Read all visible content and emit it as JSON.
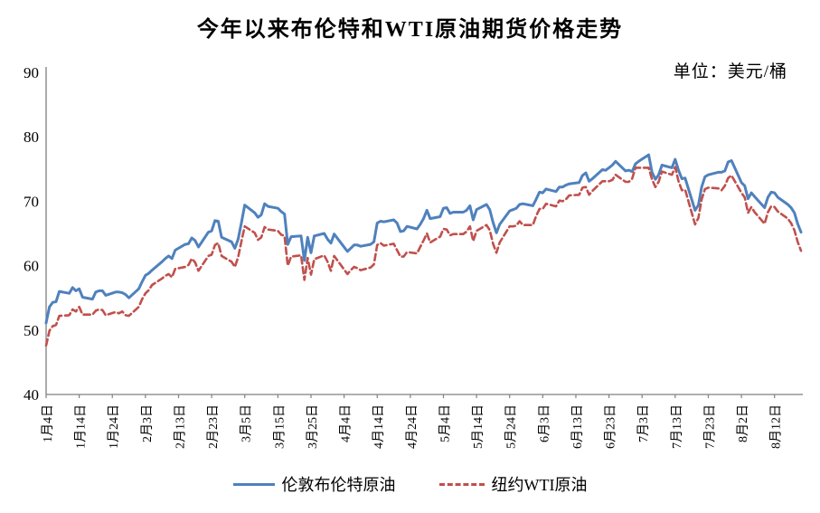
{
  "title": "今年以来布伦特和WTI原油期货价格走势",
  "unit_label": "单位：美元/桶",
  "legend": {
    "items": [
      {
        "label": "伦敦布伦特原油",
        "color": "#4F81BD",
        "style": "solid"
      },
      {
        "label": "纽约WTI原油",
        "color": "#C0504D",
        "style": "dashed"
      }
    ]
  },
  "colors": {
    "brent": "#4F81BD",
    "wti": "#C0504D",
    "axis": "#808080",
    "text": "#000000"
  },
  "chart_data": {
    "type": "line",
    "title": "今年以来布伦特和WTI原油期货价格走势",
    "unit": "美元/桶",
    "ylim": [
      40,
      90
    ],
    "yticks": [
      40,
      50,
      60,
      70,
      80,
      90
    ],
    "grid": false,
    "legend_position": "bottom",
    "x_domain": [
      "1/4",
      "8/20"
    ],
    "xticks": [
      [
        "1/4",
        "1月4日"
      ],
      [
        "1/14",
        "1月14日"
      ],
      [
        "1/24",
        "1月24日"
      ],
      [
        "2/3",
        "2月3日"
      ],
      [
        "2/13",
        "2月13日"
      ],
      [
        "2/23",
        "2月23日"
      ],
      [
        "3/5",
        "3月5日"
      ],
      [
        "3/15",
        "3月15日"
      ],
      [
        "3/25",
        "3月25日"
      ],
      [
        "4/4",
        "4月4日"
      ],
      [
        "4/14",
        "4月14日"
      ],
      [
        "4/24",
        "4月24日"
      ],
      [
        "5/4",
        "5月4日"
      ],
      [
        "5/14",
        "5月14日"
      ],
      [
        "5/24",
        "5月24日"
      ],
      [
        "6/3",
        "6月3日"
      ],
      [
        "6/13",
        "6月13日"
      ],
      [
        "6/23",
        "6月23日"
      ],
      [
        "7/3",
        "7月3日"
      ],
      [
        "7/13",
        "7月13日"
      ],
      [
        "7/23",
        "7月23日"
      ],
      [
        "8/2",
        "8月2日"
      ],
      [
        "8/12",
        "8月12日"
      ]
    ],
    "series": [
      {
        "name": "伦敦布伦特原油",
        "color": "#4F81BD",
        "line": "solid",
        "point_index": 1
      },
      {
        "name": "纽约WTI原油",
        "color": "#C0504D",
        "line": "dashed",
        "point_index": 2
      }
    ],
    "points": [
      [
        "1/4",
        51.1,
        47.6
      ],
      [
        "1/5",
        53.6,
        49.9
      ],
      [
        "1/6",
        54.3,
        50.6
      ],
      [
        "1/7",
        54.4,
        50.8
      ],
      [
        "1/8",
        56.0,
        52.2
      ],
      [
        "1/11",
        55.7,
        52.3
      ],
      [
        "1/12",
        56.6,
        53.2
      ],
      [
        "1/13",
        56.1,
        52.9
      ],
      [
        "1/14",
        56.4,
        53.6
      ],
      [
        "1/15",
        55.1,
        52.4
      ],
      [
        "1/18",
        54.8,
        52.4
      ],
      [
        "1/19",
        55.9,
        53.0
      ],
      [
        "1/20",
        56.1,
        53.2
      ],
      [
        "1/21",
        56.1,
        53.1
      ],
      [
        "1/22",
        55.4,
        52.3
      ],
      [
        "1/25",
        55.9,
        52.8
      ],
      [
        "1/26",
        55.9,
        52.6
      ],
      [
        "1/27",
        55.8,
        52.9
      ],
      [
        "1/28",
        55.5,
        52.3
      ],
      [
        "1/29",
        55.0,
        52.2
      ],
      [
        "2/1",
        56.4,
        53.6
      ],
      [
        "2/2",
        57.5,
        54.8
      ],
      [
        "2/3",
        58.5,
        55.7
      ],
      [
        "2/4",
        58.8,
        56.2
      ],
      [
        "2/5",
        59.3,
        57.0
      ],
      [
        "2/8",
        60.6,
        58.0
      ],
      [
        "2/9",
        61.1,
        58.4
      ],
      [
        "2/10",
        61.5,
        58.7
      ],
      [
        "2/11",
        61.1,
        58.2
      ],
      [
        "2/12",
        62.4,
        59.5
      ],
      [
        "2/15",
        63.3,
        59.8
      ],
      [
        "2/16",
        63.4,
        60.1
      ],
      [
        "2/17",
        64.3,
        61.1
      ],
      [
        "2/18",
        63.9,
        60.5
      ],
      [
        "2/19",
        62.9,
        59.2
      ],
      [
        "2/22",
        65.2,
        61.5
      ],
      [
        "2/23",
        65.4,
        61.7
      ],
      [
        "2/24",
        67.0,
        63.2
      ],
      [
        "2/25",
        66.9,
        63.5
      ],
      [
        "2/26",
        64.4,
        61.5
      ],
      [
        "3/1",
        63.7,
        60.6
      ],
      [
        "3/2",
        62.7,
        59.8
      ],
      [
        "3/3",
        64.1,
        61.3
      ],
      [
        "3/4",
        66.7,
        63.8
      ],
      [
        "3/5",
        69.4,
        66.1
      ],
      [
        "3/8",
        68.2,
        65.1
      ],
      [
        "3/9",
        67.5,
        64.0
      ],
      [
        "3/10",
        67.9,
        64.4
      ],
      [
        "3/11",
        69.6,
        66.0
      ],
      [
        "3/12",
        69.2,
        65.6
      ],
      [
        "3/15",
        68.9,
        65.4
      ],
      [
        "3/16",
        68.4,
        64.8
      ],
      [
        "3/17",
        68.0,
        64.6
      ],
      [
        "3/18",
        63.3,
        60.0
      ],
      [
        "3/19",
        64.5,
        61.4
      ],
      [
        "3/22",
        64.6,
        61.6
      ],
      [
        "3/23",
        60.8,
        57.8
      ],
      [
        "3/24",
        64.4,
        61.2
      ],
      [
        "3/25",
        62.0,
        58.6
      ],
      [
        "3/26",
        64.6,
        61.0
      ],
      [
        "3/29",
        65.0,
        61.6
      ],
      [
        "3/30",
        64.1,
        60.6
      ],
      [
        "3/31",
        63.5,
        59.2
      ],
      [
        "4/1",
        64.9,
        61.5
      ],
      [
        "4/5",
        62.2,
        58.7
      ],
      [
        "4/6",
        62.7,
        59.3
      ],
      [
        "4/7",
        63.2,
        59.8
      ],
      [
        "4/8",
        63.2,
        59.6
      ],
      [
        "4/9",
        63.0,
        59.3
      ],
      [
        "4/12",
        63.3,
        59.7
      ],
      [
        "4/13",
        63.7,
        60.2
      ],
      [
        "4/14",
        66.6,
        63.2
      ],
      [
        "4/15",
        66.9,
        63.5
      ],
      [
        "4/16",
        66.8,
        63.1
      ],
      [
        "4/19",
        67.1,
        63.4
      ],
      [
        "4/20",
        66.6,
        62.4
      ],
      [
        "4/21",
        65.3,
        61.4
      ],
      [
        "4/22",
        65.4,
        61.4
      ],
      [
        "4/23",
        66.1,
        62.1
      ],
      [
        "4/26",
        65.7,
        61.9
      ],
      [
        "4/27",
        66.4,
        62.9
      ],
      [
        "4/28",
        67.3,
        63.9
      ],
      [
        "4/29",
        68.6,
        65.0
      ],
      [
        "4/30",
        67.3,
        63.6
      ],
      [
        "5/3",
        67.6,
        64.5
      ],
      [
        "5/4",
        68.9,
        65.7
      ],
      [
        "5/5",
        69.0,
        65.6
      ],
      [
        "5/6",
        68.1,
        64.7
      ],
      [
        "5/7",
        68.3,
        64.9
      ],
      [
        "5/10",
        68.3,
        64.9
      ],
      [
        "5/11",
        68.6,
        65.3
      ],
      [
        "5/12",
        69.3,
        66.1
      ],
      [
        "5/13",
        67.1,
        63.8
      ],
      [
        "5/14",
        68.7,
        65.4
      ],
      [
        "5/17",
        69.5,
        66.3
      ],
      [
        "5/18",
        68.7,
        65.5
      ],
      [
        "5/19",
        66.7,
        63.4
      ],
      [
        "5/20",
        65.1,
        62.0
      ],
      [
        "5/21",
        66.4,
        63.6
      ],
      [
        "5/24",
        68.5,
        66.1
      ],
      [
        "5/25",
        68.7,
        66.1
      ],
      [
        "5/26",
        68.9,
        66.2
      ],
      [
        "5/27",
        69.5,
        66.9
      ],
      [
        "5/28",
        69.6,
        66.3
      ],
      [
        "5/31",
        69.3,
        66.3
      ],
      [
        "6/1",
        70.3,
        67.7
      ],
      [
        "6/2",
        71.4,
        68.8
      ],
      [
        "6/3",
        71.3,
        68.8
      ],
      [
        "6/4",
        71.9,
        69.6
      ],
      [
        "6/7",
        71.5,
        69.2
      ],
      [
        "6/8",
        72.2,
        70.1
      ],
      [
        "6/9",
        72.2,
        70.0
      ],
      [
        "6/10",
        72.5,
        70.3
      ],
      [
        "6/11",
        72.7,
        70.9
      ],
      [
        "6/14",
        72.9,
        71.0
      ],
      [
        "6/15",
        74.0,
        72.1
      ],
      [
        "6/16",
        74.4,
        72.2
      ],
      [
        "6/17",
        73.1,
        71.0
      ],
      [
        "6/18",
        73.5,
        71.6
      ],
      [
        "6/21",
        74.9,
        73.1
      ],
      [
        "6/22",
        74.8,
        73.1
      ],
      [
        "6/23",
        75.2,
        73.1
      ],
      [
        "6/24",
        75.6,
        73.3
      ],
      [
        "6/25",
        76.2,
        74.1
      ],
      [
        "6/28",
        74.7,
        73.0
      ],
      [
        "6/29",
        74.8,
        73.0
      ],
      [
        "6/30",
        74.6,
        73.5
      ],
      [
        "7/1",
        75.8,
        75.2
      ],
      [
        "7/2",
        76.2,
        75.2
      ],
      [
        "7/5",
        77.2,
        75.2
      ],
      [
        "7/6",
        74.5,
        73.4
      ],
      [
        "7/7",
        73.4,
        72.2
      ],
      [
        "7/8",
        74.1,
        73.0
      ],
      [
        "7/9",
        75.6,
        74.6
      ],
      [
        "7/12",
        75.2,
        74.1
      ],
      [
        "7/13",
        76.5,
        75.3
      ],
      [
        "7/14",
        74.8,
        73.1
      ],
      [
        "7/15",
        73.5,
        71.7
      ],
      [
        "7/16",
        73.6,
        71.8
      ],
      [
        "7/19",
        68.6,
        66.4
      ],
      [
        "7/20",
        69.4,
        67.4
      ],
      [
        "7/21",
        72.2,
        70.3
      ],
      [
        "7/22",
        73.8,
        71.9
      ],
      [
        "7/23",
        74.1,
        72.1
      ],
      [
        "7/26",
        74.5,
        72.0
      ],
      [
        "7/27",
        74.5,
        71.7
      ],
      [
        "7/28",
        74.7,
        72.4
      ],
      [
        "7/29",
        76.1,
        73.6
      ],
      [
        "7/30",
        76.3,
        74.0
      ],
      [
        "8/2",
        72.9,
        71.3
      ],
      [
        "8/3",
        72.4,
        70.6
      ],
      [
        "8/4",
        70.4,
        68.2
      ],
      [
        "8/5",
        71.3,
        69.1
      ],
      [
        "8/6",
        70.7,
        68.3
      ],
      [
        "8/9",
        69.0,
        66.5
      ],
      [
        "8/10",
        70.6,
        68.3
      ],
      [
        "8/11",
        71.4,
        69.2
      ],
      [
        "8/12",
        71.3,
        69.1
      ],
      [
        "8/13",
        70.6,
        68.4
      ],
      [
        "8/16",
        69.5,
        67.3
      ],
      [
        "8/17",
        69.0,
        66.6
      ],
      [
        "8/18",
        68.2,
        65.5
      ],
      [
        "8/19",
        66.5,
        63.7
      ],
      [
        "8/20",
        65.2,
        62.3
      ]
    ]
  }
}
